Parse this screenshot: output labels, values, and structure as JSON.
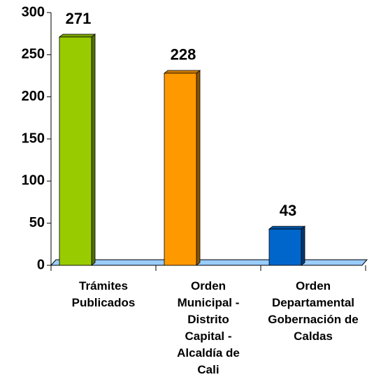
{
  "chart_data": {
    "type": "bar",
    "categories": [
      "Trámites Publicados",
      "Orden Municipal - Distrito Capital - Alcaldía de Cali",
      "Orden Departamental Gobernación de Caldas"
    ],
    "values": [
      271,
      228,
      43
    ],
    "colors": [
      "#99cc00",
      "#ff9900",
      "#0066cc"
    ],
    "ylim": [
      0,
      300
    ],
    "yticks": [
      0,
      50,
      100,
      150,
      200,
      250,
      300
    ],
    "grid": false
  }
}
